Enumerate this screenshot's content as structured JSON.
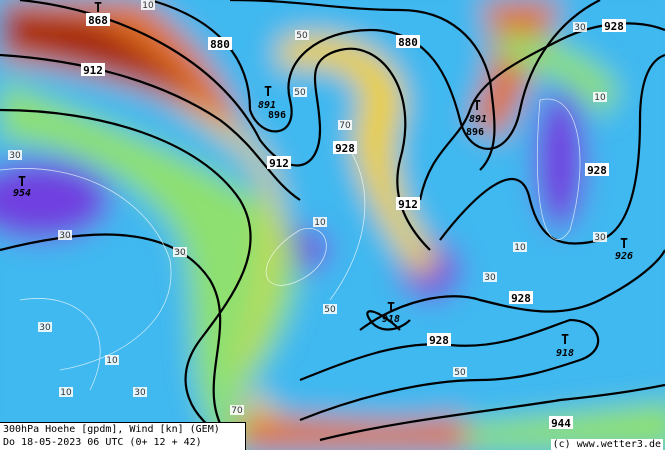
{
  "title_line1": "300hPa Hoehe [gpdm], Wind [kn] (GEM)",
  "title_line2": "Do 18-05-2023 06 UTC (0+ 12 + 42)",
  "copyright": "(c) www.wetter3.de",
  "colors": {
    "base": "#3fb8f0",
    "low_wind": "#6fd0f0",
    "mid_wind": "#8ee070",
    "high_wind": "#f0d020",
    "jet": "#e07020",
    "jet_core": "#a02010",
    "calm": "#7030e0"
  },
  "height_labels": [
    "868",
    "880",
    "880",
    "912",
    "912",
    "912",
    "891",
    "896",
    "891",
    "896",
    "928",
    "928",
    "928",
    "928",
    "954",
    "926",
    "918",
    "918",
    "928",
    "944"
  ],
  "low_markers": [
    "T",
    "T",
    "T",
    "T",
    "T",
    "T",
    "T"
  ],
  "wind_labels": [
    "10",
    "30",
    "50",
    "70",
    "30",
    "10",
    "30",
    "50",
    "10",
    "30",
    "10",
    "30",
    "70",
    "50",
    "10",
    "30",
    "10",
    "30",
    "50",
    "30"
  ]
}
